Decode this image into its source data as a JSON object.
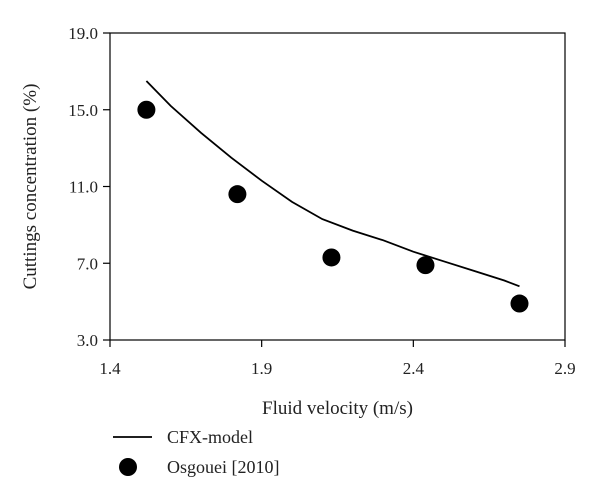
{
  "chart_data": {
    "type": "scatter",
    "xlabel": "Fluid velocity (m/s)",
    "ylabel": "Cuttings concentration (%)",
    "xlim": [
      1.4,
      2.9
    ],
    "ylim": [
      3.0,
      19.0
    ],
    "xticks": [
      "1.4",
      "1.9",
      "2.4",
      "2.9"
    ],
    "yticks": [
      "3.0",
      "7.0",
      "11.0",
      "15.0",
      "19.0"
    ],
    "grid": false,
    "legend_position": "bottom-left, below plot",
    "series": [
      {
        "name": "CFX-model",
        "style": "line",
        "color": "#000000",
        "x": [
          1.52,
          1.6,
          1.7,
          1.8,
          1.9,
          2.0,
          2.1,
          2.2,
          2.3,
          2.4,
          2.5,
          2.6,
          2.7,
          2.75
        ],
        "y": [
          16.5,
          15.2,
          13.8,
          12.5,
          11.3,
          10.2,
          9.3,
          8.7,
          8.2,
          7.6,
          7.1,
          6.6,
          6.1,
          5.8
        ]
      },
      {
        "name": "Osgouei [2010]",
        "style": "marker",
        "color": "#000000",
        "x": [
          1.52,
          1.82,
          2.13,
          2.44,
          2.75
        ],
        "y": [
          15.0,
          10.6,
          7.3,
          6.9,
          4.9
        ]
      }
    ]
  }
}
